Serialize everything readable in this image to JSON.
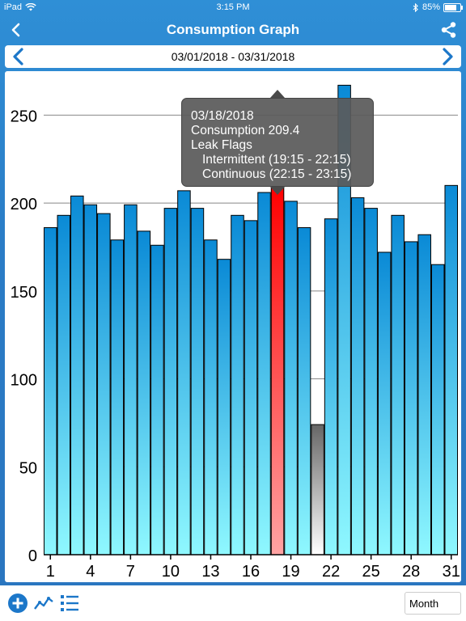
{
  "status_bar": {
    "device": "iPad",
    "time": "3:15 PM",
    "battery": "85%"
  },
  "header": {
    "title": "Consumption Graph"
  },
  "date_range": {
    "label": "03/01/2018 - 03/31/2018"
  },
  "chart_data": {
    "type": "bar",
    "categories": [
      1,
      2,
      3,
      4,
      5,
      6,
      7,
      8,
      9,
      10,
      11,
      12,
      13,
      14,
      15,
      16,
      17,
      18,
      19,
      20,
      21,
      22,
      23,
      24,
      25,
      26,
      27,
      28,
      29,
      30,
      31
    ],
    "values": [
      186,
      193,
      204,
      199,
      194,
      179,
      199,
      184,
      176,
      197,
      207,
      197,
      179,
      168,
      193,
      190,
      206,
      209.4,
      201,
      186,
      74,
      191,
      267,
      203,
      197,
      172,
      193,
      178,
      182,
      165,
      210
    ],
    "xticks": [
      1,
      4,
      7,
      10,
      13,
      16,
      19,
      22,
      25,
      28,
      31
    ],
    "yticks": [
      0,
      50,
      100,
      150,
      200,
      250
    ],
    "ylim": [
      0,
      275
    ],
    "selected_index": 17,
    "gray_index": 20,
    "grid": true,
    "colors": {
      "bar_top": "#0a8ad6",
      "bar_bottom": "#8ff8ff",
      "selected_top": "#ff0000",
      "selected_bottom": "#ffa3a3",
      "gray_top": "#666666",
      "gray_bottom": "#ffffff"
    }
  },
  "tooltip": {
    "date": "03/18/2018",
    "consumption": "Consumption 209.4",
    "leak_flags": "Leak Flags",
    "intermittent": "Intermittent (19:15 - 22:15)",
    "continuous": "Continuous (22:15 - 23:15)"
  },
  "toolbar": {
    "period_select": "Month",
    "icons": [
      "add-circle-icon",
      "line-chart-icon",
      "list-icon"
    ]
  }
}
